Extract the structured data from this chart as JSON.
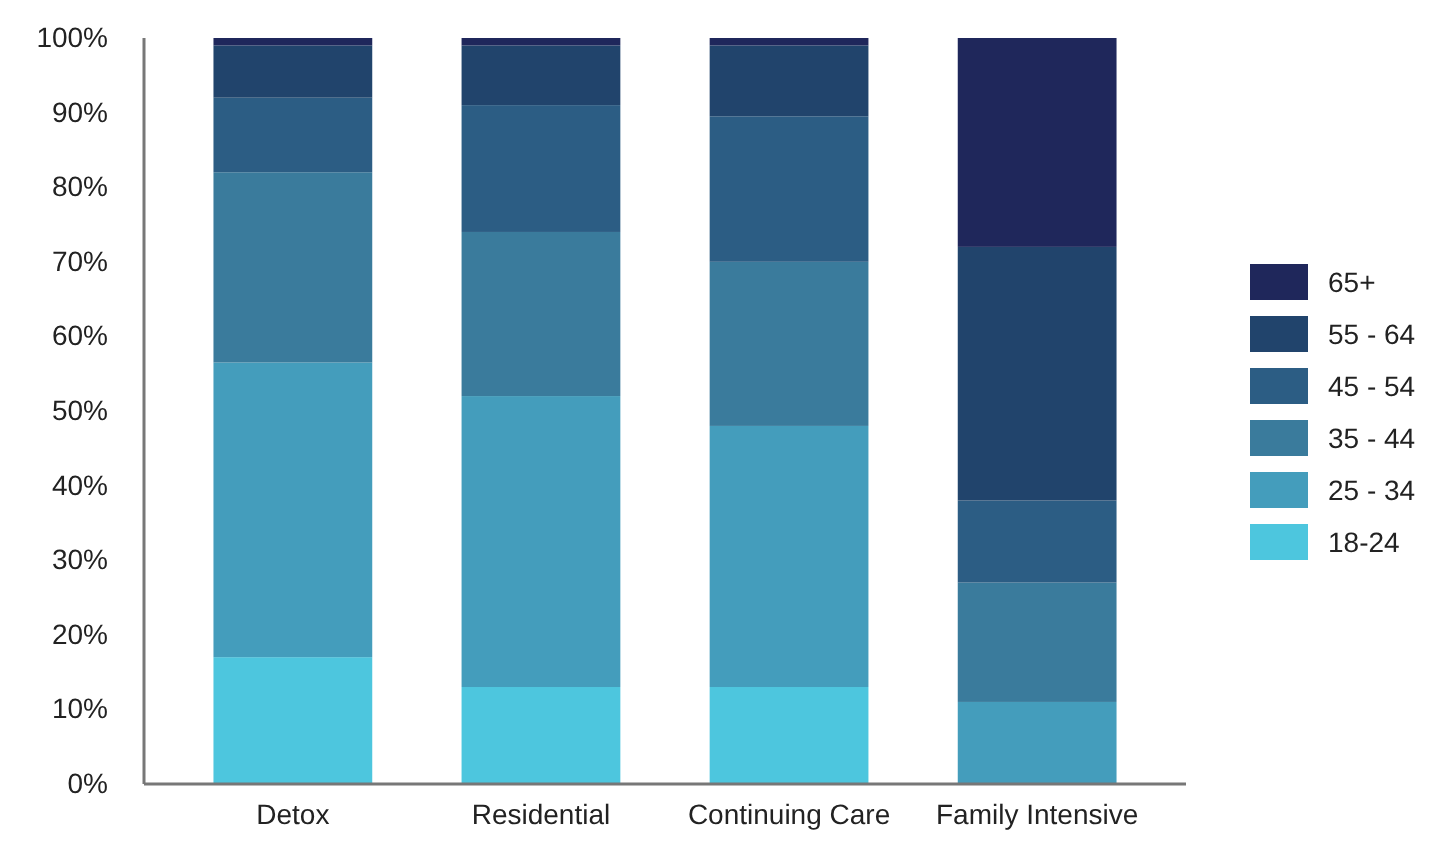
{
  "chart_data": {
    "type": "bar",
    "stacked": true,
    "categories": [
      "Detox",
      "Residential",
      "Continuing Care",
      "Family Intensive"
    ],
    "series": [
      {
        "name": "18-24",
        "color": "#4dc6de",
        "values": [
          17,
          13,
          13,
          0
        ]
      },
      {
        "name": "25 - 34",
        "color": "#449dbc",
        "values": [
          39.5,
          39,
          35,
          11
        ]
      },
      {
        "name": "35 - 44",
        "color": "#3a7b9c",
        "values": [
          25.5,
          22,
          22,
          16
        ]
      },
      {
        "name": "45 - 54",
        "color": "#2c5d84",
        "values": [
          10,
          17,
          19.5,
          11
        ]
      },
      {
        "name": "55 - 64",
        "color": "#21446c",
        "values": [
          7,
          8,
          9.5,
          34
        ]
      },
      {
        "name": "65+",
        "color": "#1f275b",
        "values": [
          1,
          1,
          1,
          28
        ]
      }
    ],
    "ylim": [
      0,
      100
    ],
    "yticks": [
      {
        "value": 0,
        "label": "0%"
      },
      {
        "value": 10,
        "label": "10%"
      },
      {
        "value": 20,
        "label": "20%"
      },
      {
        "value": 30,
        "label": "30%"
      },
      {
        "value": 40,
        "label": "40%"
      },
      {
        "value": 50,
        "label": "50%"
      },
      {
        "value": 60,
        "label": "60%"
      },
      {
        "value": 70,
        "label": "70%"
      },
      {
        "value": 80,
        "label": "80%"
      },
      {
        "value": 90,
        "label": "90%"
      },
      {
        "value": 100,
        "label": "100%"
      }
    ],
    "legend": "right"
  }
}
